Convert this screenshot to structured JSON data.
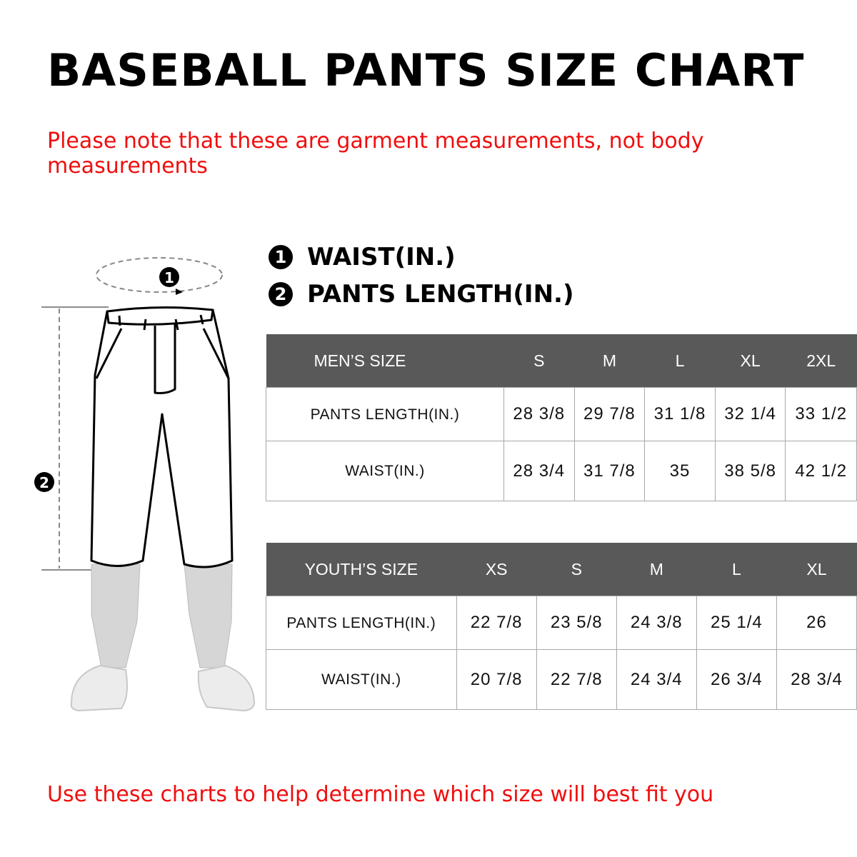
{
  "title": "BASEBALL PANTS SIZE CHART",
  "note_top": "Please note that these are garment measurements, not body measurements",
  "note_bottom": "Use these charts to help determine which size will best fit you",
  "legend": [
    {
      "number": "1",
      "label": "WAIST(IN.)"
    },
    {
      "number": "2",
      "label": "PANTS LENGTH(IN.)"
    }
  ],
  "diagram": {
    "marker_waist": "1",
    "marker_length": "2"
  },
  "colors": {
    "accent_red": "#f00e0e",
    "header_gray": "#595959"
  },
  "mens_table": {
    "header": [
      "MEN’S SIZE",
      "S",
      "M",
      "L",
      "XL",
      "2XL"
    ],
    "rows": [
      {
        "label": "PANTS LENGTH(IN.)",
        "values": [
          "28 3/8",
          "29 7/8",
          "31 1/8",
          "32 1/4",
          "33 1/2"
        ]
      },
      {
        "label": "WAIST(IN.)",
        "values": [
          "28 3/4",
          "31 7/8",
          "35",
          "38 5/8",
          "42 1/2"
        ]
      }
    ]
  },
  "youth_table": {
    "header": [
      "YOUTH’S SIZE",
      "XS",
      "S",
      "M",
      "L",
      "XL"
    ],
    "rows": [
      {
        "label": "PANTS LENGTH(IN.)",
        "values": [
          "22 7/8",
          "23 5/8",
          "24 3/8",
          "25 1/4",
          "26"
        ]
      },
      {
        "label": "WAIST(IN.)",
        "values": [
          "20 7/8",
          "22 7/8",
          "24 3/4",
          "26 3/4",
          "28 3/4"
        ]
      }
    ]
  }
}
